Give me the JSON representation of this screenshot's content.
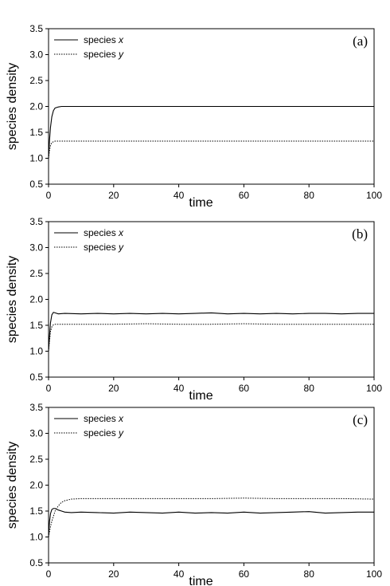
{
  "chart_data": [
    {
      "type": "line",
      "panel_label": "(a)",
      "xlabel": "time",
      "ylabel": "species density",
      "xlim": [
        0,
        100
      ],
      "ylim": [
        0.5,
        3.5
      ],
      "xticks": [
        0,
        20,
        40,
        60,
        80,
        100
      ],
      "yticks": [
        0.5,
        1.0,
        1.5,
        2.0,
        2.5,
        3.0,
        3.5
      ],
      "legend_position": "top-left",
      "series": [
        {
          "name_prefix": "species ",
          "name_var": "x",
          "style": "solid",
          "x": [
            0,
            0.3,
            0.6,
            1,
            1.5,
            2,
            3,
            4,
            5,
            10,
            20,
            30,
            40,
            50,
            60,
            70,
            80,
            90,
            100
          ],
          "y": [
            1.0,
            1.35,
            1.6,
            1.8,
            1.92,
            1.97,
            1.99,
            2.0,
            2.0,
            2.0,
            2.0,
            2.0,
            2.0,
            2.0,
            2.0,
            2.0,
            2.0,
            2.0,
            2.0
          ]
        },
        {
          "name_prefix": "species ",
          "name_var": "y",
          "style": "dotted",
          "x": [
            0,
            0.3,
            0.6,
            1,
            1.5,
            2,
            3,
            5,
            10,
            20,
            30,
            40,
            50,
            60,
            70,
            80,
            90,
            100
          ],
          "y": [
            1.0,
            1.15,
            1.25,
            1.3,
            1.32,
            1.33,
            1.33,
            1.33,
            1.33,
            1.33,
            1.33,
            1.33,
            1.33,
            1.33,
            1.33,
            1.33,
            1.33,
            1.33
          ]
        }
      ]
    },
    {
      "type": "line",
      "panel_label": "(b)",
      "xlabel": "time",
      "ylabel": "species density",
      "xlim": [
        0,
        100
      ],
      "ylim": [
        0.5,
        3.5
      ],
      "xticks": [
        0,
        20,
        40,
        60,
        80,
        100
      ],
      "yticks": [
        0.5,
        1.0,
        1.5,
        2.0,
        2.5,
        3.0,
        3.5
      ],
      "legend_position": "top-left",
      "series": [
        {
          "name_prefix": "species ",
          "name_var": "x",
          "style": "solid",
          "x": [
            0,
            0.3,
            0.6,
            1,
            1.5,
            2,
            3,
            5,
            10,
            15,
            20,
            25,
            30,
            35,
            40,
            45,
            50,
            55,
            60,
            65,
            70,
            75,
            80,
            85,
            90,
            95,
            100
          ],
          "y": [
            1.0,
            1.3,
            1.55,
            1.7,
            1.75,
            1.74,
            1.72,
            1.73,
            1.72,
            1.73,
            1.72,
            1.73,
            1.72,
            1.73,
            1.72,
            1.73,
            1.74,
            1.72,
            1.73,
            1.72,
            1.73,
            1.72,
            1.73,
            1.73,
            1.72,
            1.73,
            1.73
          ]
        },
        {
          "name_prefix": "species ",
          "name_var": "y",
          "style": "dotted",
          "x": [
            0,
            0.3,
            0.6,
            1,
            1.5,
            2,
            3,
            5,
            10,
            20,
            30,
            40,
            50,
            60,
            70,
            80,
            90,
            100
          ],
          "y": [
            1.0,
            1.2,
            1.38,
            1.47,
            1.51,
            1.52,
            1.52,
            1.52,
            1.52,
            1.52,
            1.53,
            1.52,
            1.52,
            1.53,
            1.52,
            1.52,
            1.52,
            1.52
          ]
        }
      ]
    },
    {
      "type": "line",
      "panel_label": "(c)",
      "xlabel": "time",
      "ylabel": "species density",
      "xlim": [
        0,
        100
      ],
      "ylim": [
        0.5,
        3.5
      ],
      "xticks": [
        0,
        20,
        40,
        60,
        80,
        100
      ],
      "yticks": [
        0.5,
        1.0,
        1.5,
        2.0,
        2.5,
        3.0,
        3.5
      ],
      "legend_position": "top-left",
      "series": [
        {
          "name_prefix": "species ",
          "name_var": "x",
          "style": "solid",
          "x": [
            0,
            0.3,
            0.6,
            1,
            1.5,
            2,
            3,
            4,
            5,
            7,
            10,
            15,
            20,
            25,
            30,
            35,
            40,
            45,
            50,
            55,
            60,
            65,
            70,
            75,
            80,
            85,
            90,
            95,
            100
          ],
          "y": [
            1.0,
            1.3,
            1.45,
            1.53,
            1.55,
            1.55,
            1.52,
            1.5,
            1.48,
            1.47,
            1.48,
            1.47,
            1.46,
            1.48,
            1.47,
            1.46,
            1.48,
            1.46,
            1.47,
            1.46,
            1.48,
            1.46,
            1.47,
            1.48,
            1.49,
            1.46,
            1.47,
            1.48,
            1.48
          ]
        },
        {
          "name_prefix": "species ",
          "name_var": "y",
          "style": "dotted",
          "x": [
            0,
            0.3,
            0.6,
            1,
            1.5,
            2,
            3,
            4,
            5,
            7,
            10,
            20,
            30,
            40,
            50,
            60,
            70,
            80,
            90,
            100
          ],
          "y": [
            1.0,
            1.1,
            1.2,
            1.3,
            1.4,
            1.5,
            1.6,
            1.67,
            1.7,
            1.73,
            1.74,
            1.74,
            1.74,
            1.74,
            1.74,
            1.75,
            1.74,
            1.74,
            1.74,
            1.73
          ]
        }
      ]
    }
  ]
}
